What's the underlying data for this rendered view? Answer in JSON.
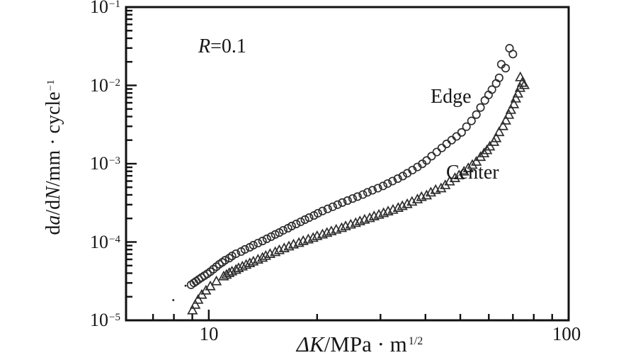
{
  "chart": {
    "annotations": {
      "r": {
        "var": "R",
        "rest": "=0.1"
      }
    },
    "axes": {
      "x": {
        "title": {
          "delta": "Δ",
          "k": "K",
          "rest": "/MPa · m",
          "sup": "1/2"
        },
        "tick_labels": [
          "10",
          "100"
        ]
      },
      "y": {
        "title": {
          "d1": "d",
          "a": "a",
          "d2": "/d",
          "n": "N",
          "rest": "/mm · cycle",
          "sup": "−1"
        },
        "tick_labels": [
          {
            "base": "10",
            "exp": "−1"
          },
          {
            "base": "10",
            "exp": "−2"
          },
          {
            "base": "10",
            "exp": "−3"
          },
          {
            "base": "10",
            "exp": "−4"
          },
          {
            "base": "10",
            "exp": "−5"
          }
        ]
      }
    }
  },
  "colors": {
    "ink": "#161616",
    "axis": "#111111",
    "marker": "#2e2e2e",
    "background": "#ffffff"
  },
  "chart_data": {
    "type": "scatter",
    "title": "",
    "xlabel": "ΔK/MPa·m^(1/2)",
    "ylabel": "da/dN/mm·cycle^(−1)",
    "log_x": true,
    "log_y": true,
    "grid": false,
    "xlim": [
      5.89,
      100
    ],
    "ylim": [
      1e-05,
      0.1
    ],
    "x_major_ticks": [
      10,
      100
    ],
    "x_minor_ticks": [
      7,
      8,
      9,
      20,
      30,
      40,
      50,
      60,
      70,
      80,
      90
    ],
    "y_major_ticks": [
      0.1,
      0.01,
      0.001,
      0.0001,
      1e-05
    ],
    "annotation": "R=0.1",
    "series": [
      {
        "name": "Edge",
        "marker": "circle",
        "points": [
          [
            8.93,
            2.84e-05
          ],
          [
            9.09,
            3.01e-05
          ],
          [
            9.22,
            3.15e-05
          ],
          [
            9.38,
            3.33e-05
          ],
          [
            9.55,
            3.52e-05
          ],
          [
            9.73,
            3.72e-05
          ],
          [
            9.91,
            3.93e-05
          ],
          [
            10.1,
            4.18e-05
          ],
          [
            10.3,
            4.5e-05
          ],
          [
            10.5,
            4.84e-05
          ],
          [
            10.7,
            5.2e-05
          ],
          [
            10.9,
            5.5e-05
          ],
          [
            11.1,
            5.85e-05
          ],
          [
            11.4,
            6.23e-05
          ],
          [
            11.6,
            6.63e-05
          ],
          [
            11.9,
            7.09e-05
          ],
          [
            12.3,
            7.55e-05
          ],
          [
            12.6,
            8.04e-05
          ],
          [
            13.0,
            8.56e-05
          ],
          [
            13.3,
            9.11e-05
          ],
          [
            13.7,
            9.69e-05
          ],
          [
            14.1,
            0.000103
          ],
          [
            14.5,
            0.00011
          ],
          [
            14.9,
            0.000117
          ],
          [
            15.3,
            0.000125
          ],
          [
            15.7,
            0.000132
          ],
          [
            16.1,
            0.000141
          ],
          [
            16.6,
            0.00015
          ],
          [
            17.0,
            0.00016
          ],
          [
            17.5,
            0.00017
          ],
          [
            18.0,
            0.000181
          ],
          [
            18.5,
            0.000193
          ],
          [
            19.0,
            0.000205
          ],
          [
            19.6,
            0.000218
          ],
          [
            20.1,
            0.000233
          ],
          [
            20.7,
            0.000249
          ],
          [
            21.4,
            0.000265
          ],
          [
            22.1,
            0.000282
          ],
          [
            22.8,
            0.0003
          ],
          [
            23.5,
            0.000319
          ],
          [
            24.3,
            0.000338
          ],
          [
            25.1,
            0.000359
          ],
          [
            25.9,
            0.00038
          ],
          [
            26.8,
            0.000404
          ],
          [
            27.6,
            0.000431
          ],
          [
            28.5,
            0.000458
          ],
          [
            29.5,
            0.000487
          ],
          [
            30.5,
            0.00052
          ],
          [
            31.4,
            0.000558
          ],
          [
            32.4,
            0.0006
          ],
          [
            33.5,
            0.000645
          ],
          [
            34.6,
            0.000695
          ],
          [
            35.6,
            0.000755
          ],
          [
            36.8,
            0.000829
          ],
          [
            38.0,
            0.000908
          ],
          [
            39.2,
            0.000996
          ],
          [
            40.3,
            0.0011
          ],
          [
            41.6,
            0.00125
          ],
          [
            43.0,
            0.00141
          ],
          [
            44.4,
            0.00159
          ],
          [
            45.8,
            0.00179
          ],
          [
            47.3,
            0.002
          ],
          [
            48.8,
            0.00223
          ],
          [
            50.4,
            0.00251
          ],
          [
            52.0,
            0.00297
          ],
          [
            53.7,
            0.00352
          ],
          [
            55.4,
            0.00424
          ],
          [
            56.9,
            0.00522
          ],
          [
            58.5,
            0.00643
          ],
          [
            59.9,
            0.00755
          ],
          [
            61.2,
            0.00883
          ],
          [
            62.9,
            0.0106
          ],
          [
            64.1,
            0.0125
          ],
          [
            65.0,
            0.0186
          ],
          [
            66.8,
            0.0166
          ],
          [
            68.5,
            0.0298
          ],
          [
            70.0,
            0.0251
          ]
        ]
      },
      {
        "name": "Center",
        "marker": "triangle",
        "points": [
          [
            9.01,
            1.34e-05
          ],
          [
            9.17,
            1.58e-05
          ],
          [
            9.34,
            1.83e-05
          ],
          [
            9.56,
            2.12e-05
          ],
          [
            9.82,
            2.4e-05
          ],
          [
            10.1,
            2.72e-05
          ],
          [
            10.5,
            3.15e-05
          ],
          [
            11.0,
            3.64e-05
          ],
          [
            11.2,
            3.82e-05
          ],
          [
            11.4,
            4.02e-05
          ],
          [
            11.6,
            4.21e-05
          ],
          [
            11.9,
            4.42e-05
          ],
          [
            12.1,
            4.64e-05
          ],
          [
            12.4,
            4.87e-05
          ],
          [
            12.7,
            5.12e-05
          ],
          [
            13.0,
            5.37e-05
          ],
          [
            13.3,
            5.64e-05
          ],
          [
            13.7,
            5.96e-05
          ],
          [
            14.1,
            6.3e-05
          ],
          [
            14.4,
            6.66e-05
          ],
          [
            14.8,
            7.04e-05
          ],
          [
            15.3,
            7.44e-05
          ],
          [
            15.7,
            7.87e-05
          ],
          [
            16.2,
            8.32e-05
          ],
          [
            16.7,
            8.79e-05
          ],
          [
            17.2,
            9.3e-05
          ],
          [
            17.8,
            9.75e-05
          ],
          [
            18.3,
            0.000103
          ],
          [
            18.9,
            0.000108
          ],
          [
            19.5,
            0.000113
          ],
          [
            20.0,
            0.000119
          ],
          [
            20.7,
            0.000125
          ],
          [
            21.3,
            0.000131
          ],
          [
            21.9,
            0.000137
          ],
          [
            22.6,
            0.000144
          ],
          [
            23.4,
            0.000151
          ],
          [
            24.0,
            0.000159
          ],
          [
            24.8,
            0.000167
          ],
          [
            25.6,
            0.000175
          ],
          [
            26.3,
            0.000184
          ],
          [
            27.1,
            0.000193
          ],
          [
            28.0,
            0.000202
          ],
          [
            28.8,
            0.000213
          ],
          [
            29.7,
            0.000223
          ],
          [
            30.6,
            0.000234
          ],
          [
            31.5,
            0.000246
          ],
          [
            32.5,
            0.000258
          ],
          [
            33.6,
            0.000273
          ],
          [
            34.5,
            0.000288
          ],
          [
            35.6,
            0.000305
          ],
          [
            36.7,
            0.000327
          ],
          [
            38.0,
            0.000351
          ],
          [
            39.0,
            0.000376
          ],
          [
            40.3,
            0.000394
          ],
          [
            41.4,
            0.000429
          ],
          [
            42.7,
            0.000463
          ],
          [
            44.2,
            0.000485
          ],
          [
            45.4,
            0.000532
          ],
          [
            46.7,
            0.000594
          ],
          [
            48.3,
            0.000655
          ],
          [
            49.6,
            0.000711
          ],
          [
            51.2,
            0.000795
          ],
          [
            52.6,
            0.000877
          ],
          [
            54.0,
            0.000966
          ],
          [
            55.4,
            0.00106
          ],
          [
            56.9,
            0.00122
          ],
          [
            58.2,
            0.00136
          ],
          [
            59.3,
            0.00149
          ],
          [
            60.4,
            0.00166
          ],
          [
            62.0,
            0.0019
          ],
          [
            62.9,
            0.00212
          ],
          [
            64.1,
            0.00253
          ],
          [
            65.7,
            0.00302
          ],
          [
            66.9,
            0.00356
          ],
          [
            68.2,
            0.00421
          ],
          [
            69.1,
            0.00487
          ],
          [
            70.4,
            0.00575
          ],
          [
            71.3,
            0.0068
          ],
          [
            72.3,
            0.00787
          ],
          [
            73.3,
            0.00929
          ],
          [
            74.3,
            0.0108
          ],
          [
            73.4,
            0.0127
          ],
          [
            75.3,
            0.0101
          ]
        ]
      }
    ],
    "stray_marks": [
      [
        7.97,
        1.81e-05
      ],
      [
        8.62,
        2.76e-05
      ]
    ]
  }
}
